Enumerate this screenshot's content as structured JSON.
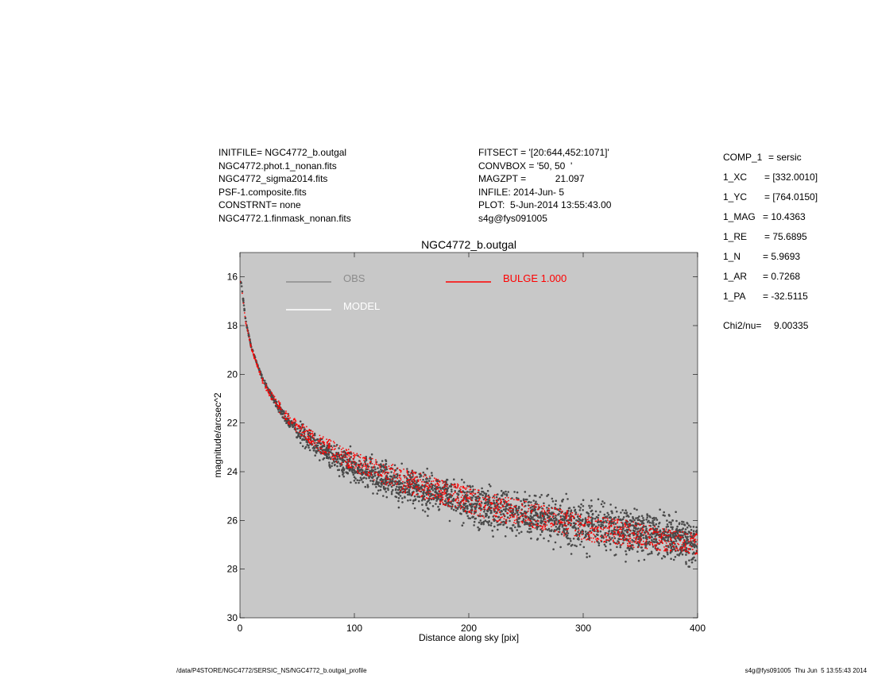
{
  "header": {
    "left": [
      "INITFILE= NGC4772_b.outgal",
      "NGC4772.phot.1_nonan.fits",
      "NGC4772_sigma2014.fits",
      "PSF-1.composite.fits",
      "CONSTRNT= none",
      "NGC4772.1.finmask_nonan.fits"
    ],
    "middle": [
      "FITSECT = '[20:644,452:1071]'",
      "CONVBOX = '50, 50  '",
      "MAGZPT =           21.097",
      "INFILE: 2014-Jun- 5",
      "PLOT:  5-Jun-2014 13:55:43.00",
      "s4g@fys091005"
    ]
  },
  "params": [
    {
      "key": "COMP_1",
      "value": "= sersic"
    },
    {
      "key": "1_XC",
      "value": "= [332.0010]"
    },
    {
      "key": "1_YC",
      "value": "= [764.0150]"
    },
    {
      "key": "1_MAG",
      "value": "= 10.4363"
    },
    {
      "key": "1_RE",
      "value": "= 75.6895"
    },
    {
      "key": "1_N",
      "value": "= 5.9693"
    },
    {
      "key": "1_AR",
      "value": "= 0.7268"
    },
    {
      "key": "1_PA",
      "value": "= -32.5115"
    },
    {
      "key": "Chi2/nu=",
      "value": "9.00335"
    }
  ],
  "footer": {
    "left": "/data/P4STORE/NGC4772/SERSIC_NS/NGC4772_b.outgal_profile",
    "right": "s4g@fys091005  Thu Jun  5 13:55:43 2014"
  },
  "chart_data": {
    "type": "scatter",
    "title": "NGC4772_b.outgal",
    "xlabel": "Distance along sky [pix]",
    "ylabel": "magnitude/arcsec^2",
    "xlim": [
      0,
      400
    ],
    "ylim": [
      30,
      15
    ],
    "y_inverted": true,
    "x_ticks": [
      0,
      100,
      200,
      300,
      400
    ],
    "y_ticks": [
      16,
      18,
      20,
      22,
      24,
      26,
      28,
      30
    ],
    "background_color": "#c8c8c8",
    "grid": false,
    "legend_placement": "top-left",
    "legend": [
      {
        "label": "OBS",
        "color": "#8c8c8c"
      },
      {
        "label": "MODEL",
        "color": "#ffffff"
      },
      {
        "label": "BULGE  1.000",
        "color": "#ff0000"
      }
    ],
    "series": [
      {
        "name": "OBS",
        "color": "#4a4a4a",
        "x": [
          1,
          5,
          10,
          20,
          30,
          40,
          50,
          60,
          70,
          80,
          100,
          120,
          140,
          160,
          180,
          200,
          220,
          240,
          260,
          280,
          300,
          320,
          340,
          360,
          380,
          400
        ],
        "y_center": [
          16.2,
          17.8,
          18.9,
          20.2,
          21.1,
          21.8,
          22.3,
          22.7,
          23.0,
          23.3,
          23.8,
          24.2,
          24.5,
          24.8,
          25.0,
          25.3,
          25.5,
          25.7,
          25.9,
          26.0,
          26.2,
          26.3,
          26.5,
          26.6,
          26.8,
          26.9
        ],
        "y_spread": [
          0.05,
          0.05,
          0.08,
          0.15,
          0.3,
          0.5,
          0.9,
          1.0,
          1.1,
          1.2,
          1.3,
          1.4,
          1.5,
          1.6,
          1.7,
          1.8,
          1.8,
          1.9,
          1.9,
          2.0,
          2.0,
          2.0,
          2.0,
          2.0,
          2.0,
          2.0
        ]
      },
      {
        "name": "BULGE  1.000",
        "color": "#ff0000",
        "x": [
          1,
          5,
          10,
          20,
          30,
          40,
          50,
          60,
          70,
          80,
          100,
          120,
          140,
          160,
          180,
          200,
          220,
          240,
          260,
          280,
          300,
          320,
          340,
          360,
          380,
          400
        ],
        "y_upper": [
          16.2,
          17.8,
          18.9,
          20.2,
          20.9,
          21.4,
          21.9,
          22.2,
          22.5,
          22.7,
          23.2,
          23.5,
          23.8,
          24.1,
          24.4,
          24.6,
          24.9,
          25.1,
          25.3,
          25.5,
          25.7,
          25.9,
          26.0,
          26.2,
          26.4,
          26.5
        ],
        "y_lower": [
          16.3,
          17.9,
          19.0,
          20.4,
          21.3,
          21.9,
          22.4,
          22.8,
          23.2,
          23.5,
          24.0,
          24.4,
          24.8,
          25.1,
          25.4,
          25.7,
          26.0,
          26.2,
          26.4,
          26.6,
          26.8,
          27.0,
          27.1,
          27.2,
          27.3,
          27.4
        ]
      }
    ]
  }
}
